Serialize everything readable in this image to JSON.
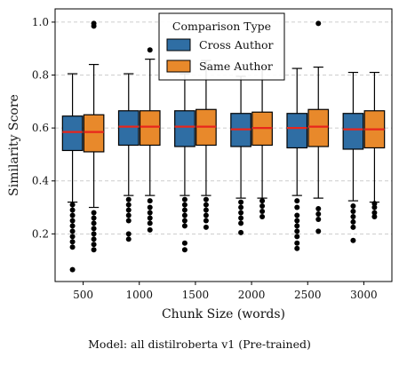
{
  "caption": "Model: all distilroberta v1 (Pre-trained)",
  "chart_data": {
    "type": "box",
    "xlabel": "Chunk Size (words)",
    "ylabel": "Similarity Score",
    "categories": [
      "500",
      "1000",
      "1500",
      "2000",
      "2500",
      "3000"
    ],
    "ylim": [
      0.02,
      1.05
    ],
    "yticks": [
      0.2,
      0.4,
      0.6,
      0.8,
      1.0
    ],
    "ytick_labels": [
      "0.2",
      "0.4",
      "0.6",
      "0.8",
      "1.0"
    ],
    "grid": "horizontal-dashed",
    "legend": {
      "title": "Comparison Type",
      "placement": "top-center",
      "entries": [
        "Cross Author",
        "Same Author"
      ]
    },
    "colors": {
      "Cross Author": "#2f6ea4",
      "Same Author": "#e8892b",
      "median": "#e8261c"
    },
    "series": [
      {
        "name": "Cross Author",
        "boxes": [
          {
            "whislo": 0.32,
            "q1": 0.515,
            "median": 0.585,
            "q3": 0.645,
            "whishi": 0.805,
            "fliers": [
              0.065,
              0.15,
              0.17,
              0.19,
              0.21,
              0.23,
              0.25,
              0.27,
              0.29,
              0.31
            ]
          },
          {
            "whislo": 0.345,
            "q1": 0.535,
            "median": 0.605,
            "q3": 0.665,
            "whishi": 0.805,
            "fliers": [
              0.18,
              0.2,
              0.25,
              0.27,
              0.29,
              0.31,
              0.33
            ]
          },
          {
            "whislo": 0.345,
            "q1": 0.53,
            "median": 0.605,
            "q3": 0.665,
            "whishi": 0.805,
            "fliers": [
              0.14,
              0.165,
              0.23,
              0.25,
              0.27,
              0.29,
              0.31,
              0.33
            ]
          },
          {
            "whislo": 0.335,
            "q1": 0.53,
            "median": 0.595,
            "q3": 0.655,
            "whishi": 0.795,
            "fliers": [
              0.205,
              0.24,
              0.26,
              0.28,
              0.3,
              0.32
            ]
          },
          {
            "whislo": 0.345,
            "q1": 0.525,
            "median": 0.6,
            "q3": 0.655,
            "whishi": 0.825,
            "fliers": [
              0.145,
              0.165,
              0.19,
              0.21,
              0.23,
              0.25,
              0.27,
              0.3,
              0.325
            ]
          },
          {
            "whislo": 0.325,
            "q1": 0.52,
            "median": 0.595,
            "q3": 0.655,
            "whishi": 0.81,
            "fliers": [
              0.175,
              0.225,
              0.245,
              0.265,
              0.285,
              0.305
            ]
          }
        ]
      },
      {
        "name": "Same Author",
        "boxes": [
          {
            "whislo": 0.3,
            "q1": 0.51,
            "median": 0.585,
            "q3": 0.65,
            "whishi": 0.84,
            "fliers": [
              0.14,
              0.16,
              0.18,
              0.2,
              0.22,
              0.24,
              0.26,
              0.28,
              0.985,
              0.995
            ]
          },
          {
            "whislo": 0.345,
            "q1": 0.535,
            "median": 0.605,
            "q3": 0.665,
            "whishi": 0.86,
            "fliers": [
              0.215,
              0.24,
              0.26,
              0.28,
              0.3,
              0.325,
              0.895
            ]
          },
          {
            "whislo": 0.345,
            "q1": 0.535,
            "median": 0.605,
            "q3": 0.67,
            "whishi": 0.855,
            "fliers": [
              0.225,
              0.25,
              0.27,
              0.29,
              0.31,
              0.33
            ]
          },
          {
            "whislo": 0.335,
            "q1": 0.535,
            "median": 0.6,
            "q3": 0.66,
            "whishi": 0.83,
            "fliers": [
              0.265,
              0.285,
              0.305,
              0.325
            ]
          },
          {
            "whislo": 0.335,
            "q1": 0.53,
            "median": 0.605,
            "q3": 0.67,
            "whishi": 0.83,
            "fliers": [
              0.21,
              0.255,
              0.275,
              0.295,
              0.995
            ]
          },
          {
            "whislo": 0.32,
            "q1": 0.525,
            "median": 0.595,
            "q3": 0.665,
            "whishi": 0.81,
            "fliers": [
              0.265,
              0.28,
              0.3,
              0.315
            ]
          }
        ]
      }
    ]
  }
}
